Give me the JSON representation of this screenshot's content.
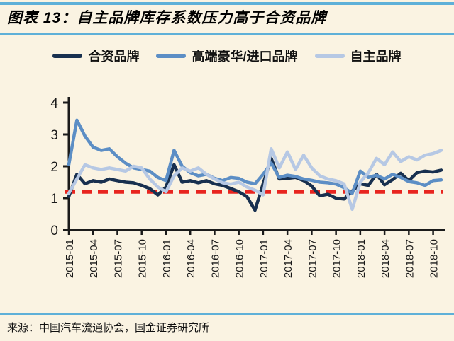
{
  "header": {
    "title": "图表 13：自主品牌库存系数压力高于合资品牌"
  },
  "footer": {
    "source": "来源：中国汽车流通协会，国金证券研究所"
  },
  "colors": {
    "background": "#faf3e2",
    "rule_blue": "#5eb0d8",
    "baseline_red": "#e8251f",
    "axis_black": "#1a1a1a"
  },
  "chart_data": {
    "type": "line",
    "title": "自主品牌库存系数压力高于合资品牌",
    "xlabel": "",
    "ylabel": "",
    "ylim": [
      0,
      4
    ],
    "y_ticks": [
      0,
      1,
      2,
      3,
      4
    ],
    "grid": false,
    "legend_position": "top",
    "baseline": {
      "value": 1.2,
      "style": "dashed",
      "color": "#e8251f"
    },
    "x": [
      "2015-01",
      "2015-02",
      "2015-03",
      "2015-04",
      "2015-05",
      "2015-06",
      "2015-07",
      "2015-08",
      "2015-09",
      "2015-10",
      "2015-11",
      "2015-12",
      "2016-01",
      "2016-02",
      "2016-03",
      "2016-04",
      "2016-05",
      "2016-06",
      "2016-07",
      "2016-08",
      "2016-09",
      "2016-10",
      "2016-11",
      "2016-12",
      "2017-01",
      "2017-02",
      "2017-03",
      "2017-04",
      "2017-05",
      "2017-06",
      "2017-07",
      "2017-08",
      "2017-09",
      "2017-10",
      "2017-11",
      "2017-12",
      "2018-01",
      "2018-02",
      "2018-03",
      "2018-04",
      "2018-05",
      "2018-06",
      "2018-07",
      "2018-08",
      "2018-09",
      "2018-10",
      "2018-11"
    ],
    "x_tick_labels": [
      "2015-01",
      "2015-04",
      "2015-07",
      "2015-10",
      "2016-01",
      "2016-04",
      "2016-07",
      "2016-10",
      "2017-01",
      "2017-04",
      "2017-07",
      "2017-10",
      "2018-01",
      "2018-04",
      "2018-07",
      "2018-10"
    ],
    "x_tick_step": 3,
    "series": [
      {
        "name": "合资品牌",
        "color": "#18304f",
        "values": [
          1.05,
          1.75,
          1.45,
          1.55,
          1.5,
          1.6,
          1.55,
          1.5,
          1.48,
          1.4,
          1.3,
          1.1,
          1.35,
          2.05,
          1.5,
          1.55,
          1.48,
          1.55,
          1.45,
          1.4,
          1.3,
          1.2,
          1.05,
          0.62,
          1.45,
          2.25,
          1.6,
          1.62,
          1.65,
          1.55,
          1.38,
          1.07,
          1.12,
          1.0,
          0.97,
          1.22,
          1.45,
          1.4,
          1.75,
          1.42,
          1.58,
          1.78,
          1.55,
          1.8,
          1.85,
          1.82,
          1.88
        ]
      },
      {
        "name": "高端豪华/进口品牌",
        "color": "#5c8ec5",
        "values": [
          2.05,
          3.45,
          2.95,
          2.6,
          2.5,
          2.55,
          2.3,
          2.1,
          1.95,
          1.9,
          1.85,
          1.65,
          1.55,
          2.5,
          2.0,
          1.8,
          1.7,
          1.75,
          1.62,
          1.55,
          1.65,
          1.62,
          1.5,
          1.45,
          1.75,
          2.1,
          1.65,
          1.72,
          1.68,
          1.6,
          1.56,
          1.5,
          1.48,
          1.44,
          1.33,
          1.15,
          1.85,
          1.65,
          1.72,
          1.6,
          1.75,
          1.65,
          1.52,
          1.48,
          1.4,
          1.55,
          1.57
        ]
      },
      {
        "name": "自主品牌",
        "color": "#b6c8e4",
        "values": [
          1.15,
          1.6,
          2.05,
          1.95,
          1.9,
          1.95,
          1.9,
          1.85,
          2.0,
          1.95,
          1.6,
          1.35,
          1.2,
          1.7,
          1.95,
          1.85,
          1.95,
          1.75,
          1.6,
          1.48,
          1.44,
          1.5,
          1.35,
          1.25,
          1.1,
          2.55,
          1.95,
          2.45,
          1.9,
          2.35,
          1.95,
          1.7,
          1.6,
          1.55,
          1.45,
          0.65,
          1.5,
          1.8,
          2.25,
          2.05,
          2.45,
          2.15,
          2.3,
          2.2,
          2.35,
          2.4,
          2.5
        ]
      }
    ]
  }
}
